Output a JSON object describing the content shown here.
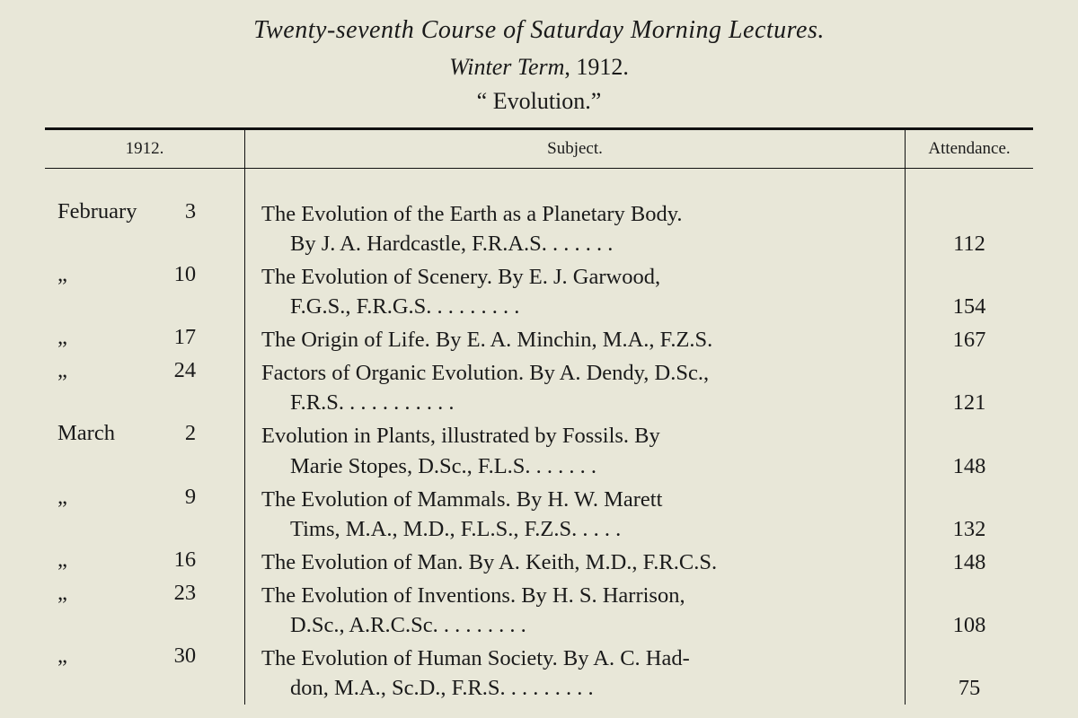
{
  "heading": {
    "title": "Twenty-seventh Course of Saturday Morning Lectures.",
    "term_italic": "Winter Term",
    "term_rest": ", 1912.",
    "topic": "“ Evolution.”"
  },
  "columns": {
    "date": "1912.",
    "subject": "Subject.",
    "attendance": "Attendance."
  },
  "ditto": "„",
  "rows": [
    {
      "month": "February",
      "day": "3",
      "subject_line1": "The Evolution of the Earth as a Planetary Body.",
      "subject_line2": "By J. A. Hardcastle, F.R.A.S.   . .        . .        . .",
      "attendance": "112"
    },
    {
      "month": "„",
      "day": "10",
      "subject_line1": "The Evolution of Scenery.  By E. J. Garwood,",
      "subject_line2": "F.G.S., F.R.G.S.      . .        . .        . .        . .",
      "attendance": "154"
    },
    {
      "month": "„",
      "day": "17",
      "subject_line1": "The Origin of Life.  By E. A. Minchin, M.A., F.Z.S.",
      "subject_line2": "",
      "attendance": "167"
    },
    {
      "month": "„",
      "day": "24",
      "subject_line1": "Factors of Organic Evolution.  By A. Dendy, D.Sc.,",
      "subject_line2": "F.R.S.         . .        . .        . .        . .        . .",
      "attendance": "121"
    },
    {
      "month": "March",
      "day": "2",
      "subject_line1": "Evolution in Plants, illustrated by Fossils.  By",
      "subject_line2": "Marie Stopes, D.Sc., F.L.S.    . .        . .        . .",
      "attendance": "148"
    },
    {
      "month": "„",
      "day": "9",
      "subject_line1": "The Evolution of Mammals.  By H. W. Marett",
      "subject_line2": "Tims, M.A., M.D., F.L.S., F.Z.S.   . .        . .",
      "attendance": "132"
    },
    {
      "month": "„",
      "day": "16",
      "subject_line1": "The Evolution of Man.  By A. Keith, M.D., F.R.C.S.",
      "subject_line2": "",
      "attendance": "148"
    },
    {
      "month": "„",
      "day": "23",
      "subject_line1": "The Evolution of Inventions.  By H. S. Harrison,",
      "subject_line2": "D.Sc., A.R.C.Sc.     . .        . .        . .        . .",
      "attendance": "108"
    },
    {
      "month": "„",
      "day": "30",
      "subject_line1": "The Evolution of Human Society.  By A. C. Had-",
      "subject_line2": "don, M.A., Sc.D., F.R.S.  . .        . .        . .        . .",
      "attendance": "75"
    }
  ]
}
